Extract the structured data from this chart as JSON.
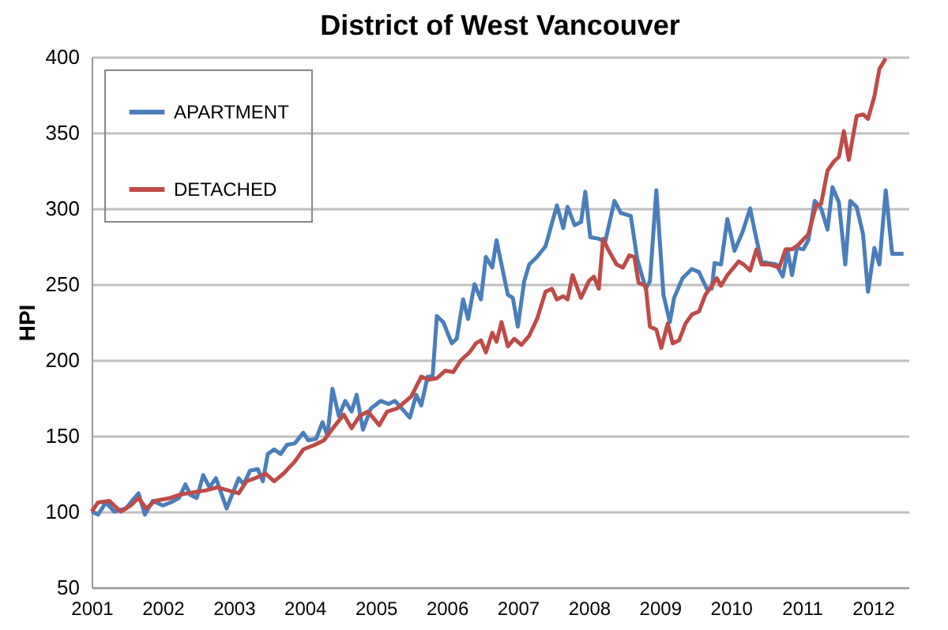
{
  "chart_data": {
    "type": "line",
    "title": "District of West Vancouver",
    "ylabel": "HPI",
    "xlim": [
      2001,
      2012.5
    ],
    "xticks": [
      2001,
      2002,
      2003,
      2004,
      2005,
      2006,
      2007,
      2008,
      2009,
      2010,
      2011,
      2012
    ],
    "ylim": [
      50,
      400
    ],
    "yticks": [
      50,
      100,
      150,
      200,
      250,
      300,
      350,
      400
    ],
    "grid": "y",
    "legend": "top left",
    "marker": "none",
    "line_style": "solid",
    "series": [
      {
        "name": "APARTMENT",
        "color": "#4a7ebb",
        "x": [
          2001.0,
          2001.09,
          2001.2,
          2001.32,
          2001.48,
          2001.66,
          2001.75,
          2001.86,
          2002.0,
          2002.11,
          2002.23,
          2002.32,
          2002.39,
          2002.48,
          2002.57,
          2002.66,
          2002.75,
          2002.9,
          2003.07,
          2003.14,
          2003.23,
          2003.34,
          2003.41,
          2003.48,
          2003.57,
          2003.66,
          2003.75,
          2003.86,
          2003.98,
          2004.05,
          2004.16,
          2004.25,
          2004.32,
          2004.39,
          2004.48,
          2004.57,
          2004.66,
          2004.73,
          2004.82,
          2004.93,
          2005.07,
          2005.18,
          2005.27,
          2005.48,
          2005.57,
          2005.64,
          2005.73,
          2005.8,
          2005.86,
          2005.95,
          2006.07,
          2006.14,
          2006.23,
          2006.3,
          2006.39,
          2006.48,
          2006.55,
          2006.64,
          2006.7,
          2006.77,
          2006.86,
          2006.93,
          2007.0,
          2007.09,
          2007.16,
          2007.27,
          2007.39,
          2007.55,
          2007.64,
          2007.7,
          2007.8,
          2007.89,
          2007.95,
          2008.02,
          2008.14,
          2008.23,
          2008.36,
          2008.45,
          2008.59,
          2008.68,
          2008.8,
          2008.86,
          2008.95,
          2009.05,
          2009.14,
          2009.2,
          2009.32,
          2009.45,
          2009.55,
          2009.66,
          2009.73,
          2009.77,
          2009.86,
          2009.95,
          2010.05,
          2010.16,
          2010.27,
          2010.34,
          2010.43,
          2010.52,
          2010.64,
          2010.73,
          2010.8,
          2010.86,
          2010.93,
          2011.02,
          2011.09,
          2011.18,
          2011.27,
          2011.36,
          2011.43,
          2011.52,
          2011.61,
          2011.68,
          2011.77,
          2011.86,
          2011.93,
          2012.02,
          2012.09,
          2012.18,
          2012.27,
          2012.43
        ],
        "values": [
          100,
          98,
          106,
          100,
          102,
          112,
          98,
          107,
          104,
          106,
          109,
          118,
          111,
          109,
          124,
          116,
          122,
          102,
          122,
          118,
          127,
          128,
          120,
          138,
          141,
          138,
          144,
          145,
          152,
          147,
          148,
          159,
          150,
          181,
          163,
          173,
          166,
          177,
          154,
          168,
          173,
          171,
          173,
          162,
          177,
          170,
          189,
          189,
          229,
          225,
          211,
          214,
          240,
          227,
          250,
          240,
          268,
          261,
          279,
          263,
          243,
          241,
          222,
          252,
          263,
          268,
          275,
          302,
          287,
          301,
          289,
          291,
          311,
          281,
          280,
          278,
          305,
          297,
          295,
          267,
          247,
          252,
          312,
          243,
          225,
          241,
          254,
          260,
          258,
          247,
          247,
          264,
          263,
          293,
          272,
          284,
          300,
          284,
          265,
          264,
          263,
          255,
          272,
          256,
          274,
          273,
          279,
          305,
          300,
          286,
          314,
          304,
          263,
          305,
          301,
          283,
          245,
          274,
          263,
          312,
          270,
          270
        ]
      },
      {
        "name": "DETACHED",
        "color": "#be4b48",
        "x": [
          2001.0,
          2001.09,
          2001.25,
          2001.41,
          2001.55,
          2001.66,
          2001.77,
          2001.89,
          2002.11,
          2002.23,
          2002.34,
          2002.61,
          2002.77,
          2003.07,
          2003.18,
          2003.3,
          2003.45,
          2003.57,
          2003.7,
          2003.86,
          2003.98,
          2004.14,
          2004.27,
          2004.43,
          2004.55,
          2004.66,
          2004.77,
          2004.89,
          2005.05,
          2005.16,
          2005.3,
          2005.5,
          2005.64,
          2005.75,
          2005.86,
          2005.98,
          2006.09,
          2006.2,
          2006.32,
          2006.41,
          2006.48,
          2006.55,
          2006.64,
          2006.7,
          2006.77,
          2006.86,
          2006.95,
          2007.05,
          2007.16,
          2007.27,
          2007.39,
          2007.48,
          2007.55,
          2007.64,
          2007.7,
          2007.77,
          2007.89,
          2008.0,
          2008.07,
          2008.14,
          2008.2,
          2008.27,
          2008.39,
          2008.48,
          2008.57,
          2008.64,
          2008.7,
          2008.8,
          2008.86,
          2008.95,
          2009.02,
          2009.11,
          2009.18,
          2009.27,
          2009.36,
          2009.45,
          2009.55,
          2009.64,
          2009.73,
          2009.8,
          2009.86,
          2009.95,
          2010.11,
          2010.18,
          2010.27,
          2010.36,
          2010.43,
          2010.55,
          2010.68,
          2010.77,
          2010.86,
          2010.95,
          2011.09,
          2011.2,
          2011.27,
          2011.36,
          2011.45,
          2011.52,
          2011.59,
          2011.66,
          2011.77,
          2011.86,
          2011.93,
          2012.02,
          2012.09,
          2012.18
        ],
        "values": [
          100,
          106,
          107,
          100,
          104,
          109,
          102,
          107,
          109,
          111,
          112,
          114,
          116,
          112,
          120,
          122,
          125,
          120,
          125,
          133,
          141,
          144,
          147,
          157,
          164,
          155,
          163,
          166,
          157,
          166,
          168,
          176,
          189,
          187,
          188,
          193,
          192,
          200,
          205,
          211,
          213,
          205,
          218,
          212,
          225,
          209,
          214,
          210,
          216,
          227,
          245,
          247,
          240,
          242,
          240,
          256,
          241,
          252,
          255,
          247,
          280,
          273,
          263,
          261,
          269,
          268,
          251,
          249,
          222,
          220,
          208,
          224,
          211,
          213,
          224,
          230,
          232,
          243,
          249,
          254,
          249,
          256,
          265,
          263,
          259,
          273,
          263,
          263,
          261,
          273,
          273,
          276,
          283,
          302,
          303,
          325,
          331,
          334,
          351,
          332,
          361,
          362,
          359,
          374,
          392,
          399
        ]
      }
    ]
  }
}
